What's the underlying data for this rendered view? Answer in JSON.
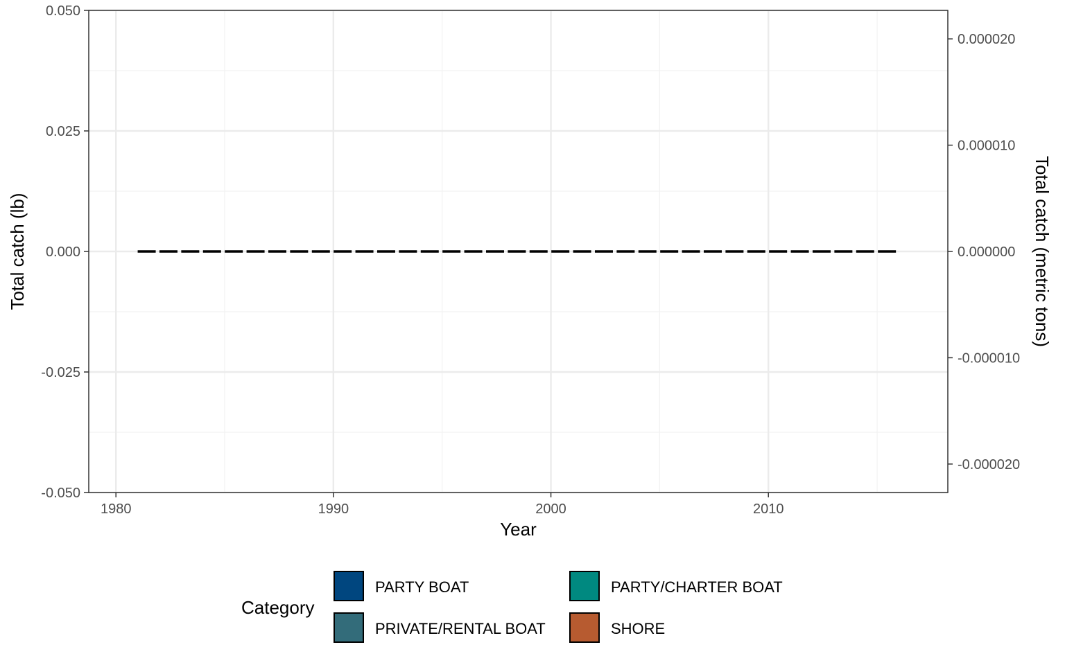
{
  "chart_data": {
    "type": "line",
    "xlabel": "Year",
    "ylabel": "Total catch (lb)",
    "ylabel_right": "Total catch (metric tons)",
    "xlim": [
      1978.75,
      2018.25
    ],
    "ylim": [
      -0.05,
      0.05
    ],
    "ylim_right": [
      -2.26796e-05,
      2.26796e-05
    ],
    "x_ticks": [
      1980,
      1990,
      2000,
      2010
    ],
    "x_tick_labels": [
      "1980",
      "1990",
      "2000",
      "2010"
    ],
    "y_ticks": [
      -0.05,
      -0.025,
      0,
      0.025,
      0.05
    ],
    "y_tick_labels": [
      "-0.050",
      "-0.025",
      "0.000",
      "0.025",
      "0.050"
    ],
    "y_right_ticks": [
      -2e-05,
      -1e-05,
      0,
      1e-05,
      2e-05
    ],
    "y_right_tick_labels": [
      "-0.000020",
      "-0.000010",
      "0.000000",
      "0.000010",
      "0.000020"
    ],
    "grid": true,
    "series": [
      {
        "style": "dashed",
        "color": "#000000",
        "x": [
          1981,
          2016
        ],
        "y": [
          0,
          0
        ]
      }
    ],
    "legend": {
      "title": "Category",
      "placement": "bottom",
      "items": [
        {
          "label": "PARTY BOAT",
          "color": "#00467F"
        },
        {
          "label": "PARTY/CHARTER BOAT",
          "color": "#008980"
        },
        {
          "label": "PRIVATE/RENTAL BOAT",
          "color": "#336C7A"
        },
        {
          "label": "SHORE",
          "color": "#B75B30"
        }
      ]
    }
  }
}
